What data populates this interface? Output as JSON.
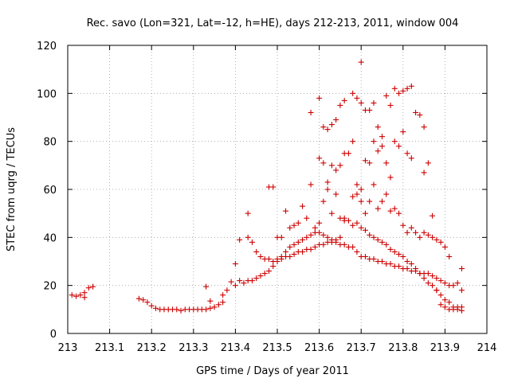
{
  "chart_data": {
    "type": "scatter",
    "title": "Rec. savo (Lon=321, Lat=-12, h=HE), days 212-213, 2011, window 004",
    "xlabel": "GPS time / Days of year 2011",
    "ylabel": "STEC from uqrg / TECUs",
    "xlim": [
      213,
      214
    ],
    "ylim": [
      0,
      120
    ],
    "x_ticks": [
      213,
      213.1,
      213.2,
      213.3,
      213.4,
      213.5,
      213.6,
      213.7,
      213.8,
      213.9,
      214
    ],
    "x_tick_labels": [
      "213",
      "213.1",
      "213.2",
      "213.3",
      "213.4",
      "213.5",
      "213.6",
      "213.7",
      "213.8",
      "213.9",
      "214"
    ],
    "y_ticks": [
      0,
      20,
      40,
      60,
      80,
      100,
      120
    ],
    "y_tick_labels": [
      "0",
      "20",
      "40",
      "60",
      "80",
      "100",
      "120"
    ],
    "grid": true,
    "marker": "plus",
    "color": "#cc0000",
    "points": [
      [
        213.01,
        16
      ],
      [
        213.02,
        15.5
      ],
      [
        213.03,
        16
      ],
      [
        213.04,
        15
      ],
      [
        213.04,
        17
      ],
      [
        213.05,
        19
      ],
      [
        213.06,
        19.5
      ],
      [
        213.17,
        14.5
      ],
      [
        213.18,
        14
      ],
      [
        213.19,
        13
      ],
      [
        213.2,
        11.5
      ],
      [
        213.21,
        10.5
      ],
      [
        213.22,
        10
      ],
      [
        213.23,
        10
      ],
      [
        213.24,
        10
      ],
      [
        213.25,
        10
      ],
      [
        213.26,
        10
      ],
      [
        213.27,
        9.5
      ],
      [
        213.28,
        10
      ],
      [
        213.29,
        10
      ],
      [
        213.3,
        10
      ],
      [
        213.31,
        10
      ],
      [
        213.32,
        10
      ],
      [
        213.33,
        10
      ],
      [
        213.34,
        10.5
      ],
      [
        213.35,
        11
      ],
      [
        213.36,
        12
      ],
      [
        213.37,
        13
      ],
      [
        213.33,
        19.5
      ],
      [
        213.34,
        13.5
      ],
      [
        213.37,
        16
      ],
      [
        213.38,
        18
      ],
      [
        213.39,
        21.5
      ],
      [
        213.4,
        20
      ],
      [
        213.41,
        22
      ],
      [
        213.42,
        21
      ],
      [
        213.43,
        22
      ],
      [
        213.44,
        22
      ],
      [
        213.45,
        23
      ],
      [
        213.46,
        24
      ],
      [
        213.47,
        25
      ],
      [
        213.48,
        26
      ],
      [
        213.49,
        28
      ],
      [
        213.5,
        30
      ],
      [
        213.51,
        32
      ],
      [
        213.52,
        34
      ],
      [
        213.53,
        36
      ],
      [
        213.54,
        37
      ],
      [
        213.55,
        38
      ],
      [
        213.56,
        39
      ],
      [
        213.57,
        40
      ],
      [
        213.58,
        41
      ],
      [
        213.59,
        42
      ],
      [
        213.6,
        42
      ],
      [
        213.61,
        41
      ],
      [
        213.62,
        40
      ],
      [
        213.63,
        39
      ],
      [
        213.64,
        38
      ],
      [
        213.65,
        37
      ],
      [
        213.66,
        37
      ],
      [
        213.67,
        36
      ],
      [
        213.68,
        36
      ],
      [
        213.4,
        29
      ],
      [
        213.41,
        39
      ],
      [
        213.43,
        40
      ],
      [
        213.44,
        38
      ],
      [
        213.45,
        34
      ],
      [
        213.46,
        32
      ],
      [
        213.47,
        31
      ],
      [
        213.48,
        31
      ],
      [
        213.49,
        30
      ],
      [
        213.5,
        31
      ],
      [
        213.51,
        31
      ],
      [
        213.52,
        32
      ],
      [
        213.53,
        32
      ],
      [
        213.54,
        33
      ],
      [
        213.55,
        34
      ],
      [
        213.56,
        34
      ],
      [
        213.57,
        35
      ],
      [
        213.58,
        35
      ],
      [
        213.59,
        36
      ],
      [
        213.6,
        37
      ],
      [
        213.61,
        37
      ],
      [
        213.62,
        38
      ],
      [
        213.63,
        38
      ],
      [
        213.64,
        39
      ],
      [
        213.65,
        40
      ],
      [
        213.43,
        50
      ],
      [
        213.48,
        61
      ],
      [
        213.49,
        61
      ],
      [
        213.5,
        40
      ],
      [
        213.51,
        40
      ],
      [
        213.52,
        51
      ],
      [
        213.53,
        44
      ],
      [
        213.54,
        45
      ],
      [
        213.55,
        46
      ],
      [
        213.56,
        53
      ],
      [
        213.57,
        48
      ],
      [
        213.58,
        62
      ],
      [
        213.59,
        44
      ],
      [
        213.6,
        46
      ],
      [
        213.61,
        55
      ],
      [
        213.62,
        60
      ],
      [
        213.63,
        50
      ],
      [
        213.64,
        58
      ],
      [
        213.65,
        48
      ],
      [
        213.66,
        47
      ],
      [
        213.6,
        98
      ],
      [
        213.61,
        86
      ],
      [
        213.58,
        92
      ],
      [
        213.62,
        85
      ],
      [
        213.63,
        87
      ],
      [
        213.64,
        89
      ],
      [
        213.65,
        95
      ],
      [
        213.66,
        97
      ],
      [
        213.68,
        100
      ],
      [
        213.69,
        98
      ],
      [
        213.7,
        96
      ],
      [
        213.7,
        113
      ],
      [
        213.71,
        93
      ],
      [
        213.72,
        93
      ],
      [
        213.73,
        96
      ],
      [
        213.74,
        86
      ],
      [
        213.75,
        82
      ],
      [
        213.76,
        99
      ],
      [
        213.77,
        95
      ],
      [
        213.78,
        102
      ],
      [
        213.79,
        100
      ],
      [
        213.8,
        101
      ],
      [
        213.81,
        102
      ],
      [
        213.82,
        103
      ],
      [
        213.83,
        92
      ],
      [
        213.84,
        91
      ],
      [
        213.85,
        86
      ],
      [
        213.6,
        73
      ],
      [
        213.61,
        71
      ],
      [
        213.62,
        63
      ],
      [
        213.63,
        70
      ],
      [
        213.64,
        68
      ],
      [
        213.65,
        70
      ],
      [
        213.66,
        75
      ],
      [
        213.67,
        75
      ],
      [
        213.68,
        80
      ],
      [
        213.69,
        62
      ],
      [
        213.7,
        60
      ],
      [
        213.71,
        72
      ],
      [
        213.72,
        71
      ],
      [
        213.73,
        80
      ],
      [
        213.74,
        76
      ],
      [
        213.75,
        78
      ],
      [
        213.76,
        71
      ],
      [
        213.77,
        65
      ],
      [
        213.78,
        80
      ],
      [
        213.79,
        78
      ],
      [
        213.8,
        84
      ],
      [
        213.81,
        75
      ],
      [
        213.82,
        73
      ],
      [
        213.85,
        67
      ],
      [
        213.86,
        71
      ],
      [
        213.68,
        57
      ],
      [
        213.69,
        58
      ],
      [
        213.7,
        55
      ],
      [
        213.71,
        50
      ],
      [
        213.72,
        55
      ],
      [
        213.73,
        62
      ],
      [
        213.74,
        52
      ],
      [
        213.75,
        55
      ],
      [
        213.76,
        58
      ],
      [
        213.77,
        51
      ],
      [
        213.78,
        52
      ],
      [
        213.79,
        50
      ],
      [
        213.8,
        45
      ],
      [
        213.81,
        42
      ],
      [
        213.82,
        44
      ],
      [
        213.83,
        42
      ],
      [
        213.84,
        40
      ],
      [
        213.85,
        42
      ],
      [
        213.86,
        41
      ],
      [
        213.87,
        40
      ],
      [
        213.88,
        39
      ],
      [
        213.89,
        38
      ],
      [
        213.9,
        36
      ],
      [
        213.91,
        32
      ],
      [
        213.66,
        48
      ],
      [
        213.67,
        47
      ],
      [
        213.68,
        45
      ],
      [
        213.69,
        46
      ],
      [
        213.7,
        44
      ],
      [
        213.71,
        43
      ],
      [
        213.72,
        41
      ],
      [
        213.73,
        40
      ],
      [
        213.74,
        39
      ],
      [
        213.75,
        38
      ],
      [
        213.76,
        37
      ],
      [
        213.77,
        35
      ],
      [
        213.78,
        34
      ],
      [
        213.79,
        33
      ],
      [
        213.8,
        32
      ],
      [
        213.81,
        30
      ],
      [
        213.82,
        29
      ],
      [
        213.83,
        27
      ],
      [
        213.84,
        25
      ],
      [
        213.85,
        23
      ],
      [
        213.86,
        21
      ],
      [
        213.87,
        20
      ],
      [
        213.88,
        18
      ],
      [
        213.89,
        16
      ],
      [
        213.69,
        34
      ],
      [
        213.7,
        32
      ],
      [
        213.71,
        32
      ],
      [
        213.72,
        31
      ],
      [
        213.73,
        31
      ],
      [
        213.74,
        30
      ],
      [
        213.75,
        30
      ],
      [
        213.76,
        29
      ],
      [
        213.77,
        29
      ],
      [
        213.78,
        28
      ],
      [
        213.79,
        28
      ],
      [
        213.8,
        27
      ],
      [
        213.81,
        27
      ],
      [
        213.82,
        26
      ],
      [
        213.83,
        26
      ],
      [
        213.84,
        25
      ],
      [
        213.85,
        25
      ],
      [
        213.86,
        25
      ],
      [
        213.87,
        24
      ],
      [
        213.88,
        23
      ],
      [
        213.89,
        22
      ],
      [
        213.9,
        21
      ],
      [
        213.91,
        20
      ],
      [
        213.92,
        20
      ],
      [
        213.93,
        21
      ],
      [
        213.94,
        27
      ],
      [
        213.87,
        49
      ],
      [
        213.88,
        18
      ],
      [
        213.89,
        12
      ],
      [
        213.9,
        11
      ],
      [
        213.91,
        10
      ],
      [
        213.92,
        10
      ],
      [
        213.93,
        10
      ],
      [
        213.94,
        9.5
      ],
      [
        213.9,
        14
      ],
      [
        213.91,
        13
      ],
      [
        213.92,
        11
      ],
      [
        213.93,
        11
      ],
      [
        213.94,
        11
      ],
      [
        213.94,
        18
      ]
    ]
  }
}
